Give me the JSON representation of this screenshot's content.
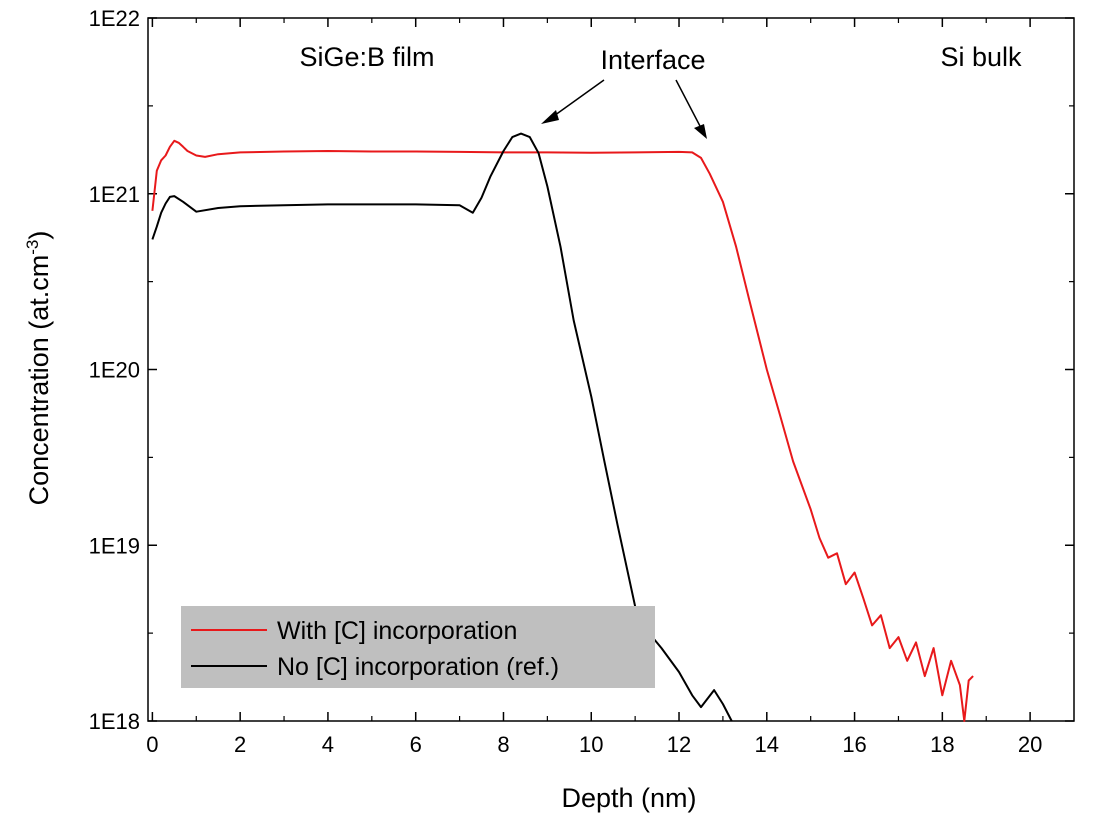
{
  "chart_data": {
    "type": "line",
    "xlabel": "Depth (nm)",
    "ylabel_main": "Concentration (at.cm",
    "ylabel_sup": "-3",
    "ylabel_close": ")",
    "xlim": [
      -0.1,
      21
    ],
    "ylim": [
      1e+18,
      1e+22
    ],
    "yscale": "log",
    "x_ticks": [
      0,
      2,
      4,
      6,
      8,
      10,
      12,
      14,
      16,
      18,
      20
    ],
    "x_tick_labels": [
      "0",
      "2",
      "4",
      "6",
      "8",
      "10",
      "12",
      "14",
      "16",
      "18",
      "20"
    ],
    "y_ticks": [
      1e+18,
      1e+19,
      1e+20,
      1e+21,
      1e+22
    ],
    "y_tick_labels": [
      "1E18",
      "1E19",
      "1E20",
      "1E21",
      "1E22"
    ],
    "grid": false,
    "legend_position": "bottom-left",
    "annotations": {
      "film": "SiGe:B film",
      "interface": "Interface",
      "bulk": "Si bulk"
    },
    "series": [
      {
        "name": "With [C] incorporation",
        "color": "#e8191b",
        "x": [
          0.0,
          0.1,
          0.2,
          0.3,
          0.4,
          0.5,
          0.6,
          0.7,
          0.8,
          1.0,
          1.2,
          1.5,
          2.0,
          3.0,
          4.0,
          5.0,
          6.0,
          7.0,
          8.0,
          9.0,
          10.0,
          11.0,
          12.0,
          12.3,
          12.5,
          12.7,
          13.0,
          13.3,
          13.6,
          14.0,
          14.3,
          14.6,
          15.0,
          15.2,
          15.4,
          15.6,
          15.8,
          16.0,
          16.2,
          16.4,
          16.6,
          16.8,
          17.0,
          17.2,
          17.4,
          17.6,
          17.8,
          18.0,
          18.2,
          18.4,
          18.5,
          18.6,
          18.7
        ],
        "y": [
          8e+20,
          1.35e+21,
          1.55e+21,
          1.65e+21,
          1.85e+21,
          2e+21,
          1.95e+21,
          1.85e+21,
          1.75e+21,
          1.65e+21,
          1.62e+21,
          1.68e+21,
          1.72e+21,
          1.74e+21,
          1.75e+21,
          1.74e+21,
          1.74e+21,
          1.73e+21,
          1.72e+21,
          1.72e+21,
          1.71e+21,
          1.72e+21,
          1.73e+21,
          1.72e+21,
          1.6e+21,
          1.3e+21,
          9e+20,
          5e+20,
          2.5e+20,
          1e+20,
          5.5e+19,
          3e+19,
          1.6e+19,
          1.1e+19,
          8.5e+18,
          9e+18,
          6e+18,
          7e+18,
          5e+18,
          3.5e+18,
          4e+18,
          2.6e+18,
          3e+18,
          2.2e+18,
          2.8e+18,
          1.8e+18,
          2.6e+18,
          1.4e+18,
          2.2e+18,
          1.6e+18,
          1e+18,
          1.7e+18,
          1.8e+18
        ]
      },
      {
        "name": "No [C] incorporation (ref.)",
        "color": "#000000",
        "x": [
          0.0,
          0.1,
          0.2,
          0.3,
          0.4,
          0.5,
          0.7,
          1.0,
          1.5,
          2.0,
          3.0,
          4.0,
          5.0,
          6.0,
          7.0,
          7.3,
          7.5,
          7.7,
          8.0,
          8.2,
          8.4,
          8.6,
          8.8,
          9.0,
          9.3,
          9.6,
          10.0,
          10.3,
          10.6,
          11.0,
          11.3,
          11.6,
          12.0,
          12.3,
          12.5,
          12.8,
          13.0,
          13.2
        ],
        "y": [
          5.5e+20,
          6.5e+20,
          7.8e+20,
          8.8e+20,
          9.6e+20,
          9.7e+20,
          9e+20,
          7.9e+20,
          8.3e+20,
          8.5e+20,
          8.6e+20,
          8.7e+20,
          8.7e+20,
          8.7e+20,
          8.6e+20,
          7.8e+20,
          9.5e+20,
          1.25e+21,
          1.75e+21,
          2.1e+21,
          2.2e+21,
          2.1e+21,
          1.7e+21,
          1.1e+21,
          5e+20,
          1.9e+20,
          7e+19,
          3e+19,
          1.3e+19,
          4.5e+18,
          3.2e+18,
          2.6e+18,
          1.9e+18,
          1.4e+18,
          1.2e+18,
          1.5e+18,
          1.25e+18,
          1e+18
        ]
      }
    ]
  }
}
